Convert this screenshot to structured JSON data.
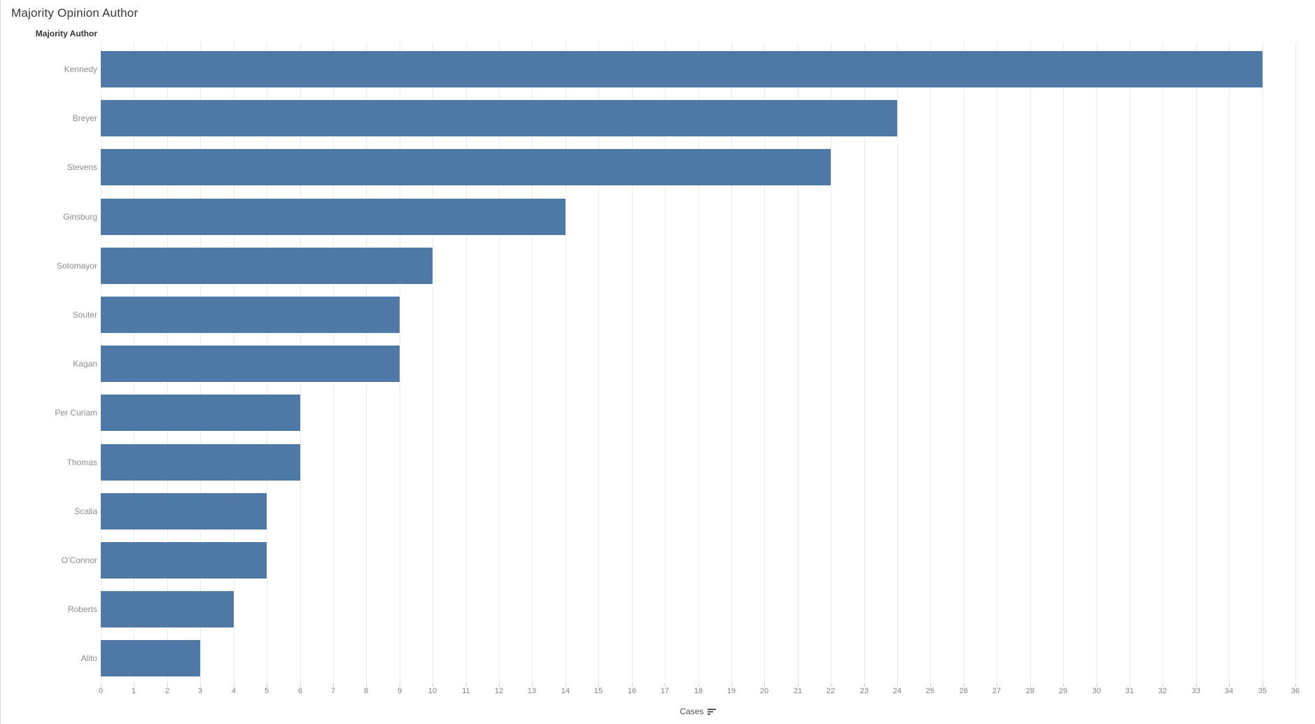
{
  "title": "Majority Opinion Author",
  "row_header": "Majority Author",
  "axis": {
    "label": "Cases",
    "min": 0,
    "max": 36,
    "tick_step": 1
  },
  "colors": {
    "bar": "#4e79a7",
    "title_text": "#373737",
    "header_text": "#333333",
    "row_label_text": "#8c8c8c",
    "tick_label_text": "#818181",
    "axis_label_text": "#4e4e4e",
    "gridline": "#eaeaea",
    "left_border": "#d9d9d9",
    "background": "#ffffff"
  },
  "chart_data": {
    "type": "bar",
    "orientation": "horizontal",
    "title": "Majority Opinion Author",
    "categories": [
      "Kennedy",
      "Breyer",
      "Stevens",
      "Ginsburg",
      "Sotomayor",
      "Souter",
      "Kagan",
      "Per Curiam",
      "Thomas",
      "Scalia",
      "O’Connor",
      "Roberts",
      "Alito"
    ],
    "values": [
      35,
      24,
      22,
      14,
      10,
      9,
      9,
      6,
      6,
      5,
      5,
      4,
      3
    ],
    "xlabel": "Cases",
    "ylabel": "Majority Author",
    "xlim": [
      0,
      36
    ],
    "xtick_interval": 1,
    "grid": true,
    "legend": false,
    "sort": "descending"
  }
}
